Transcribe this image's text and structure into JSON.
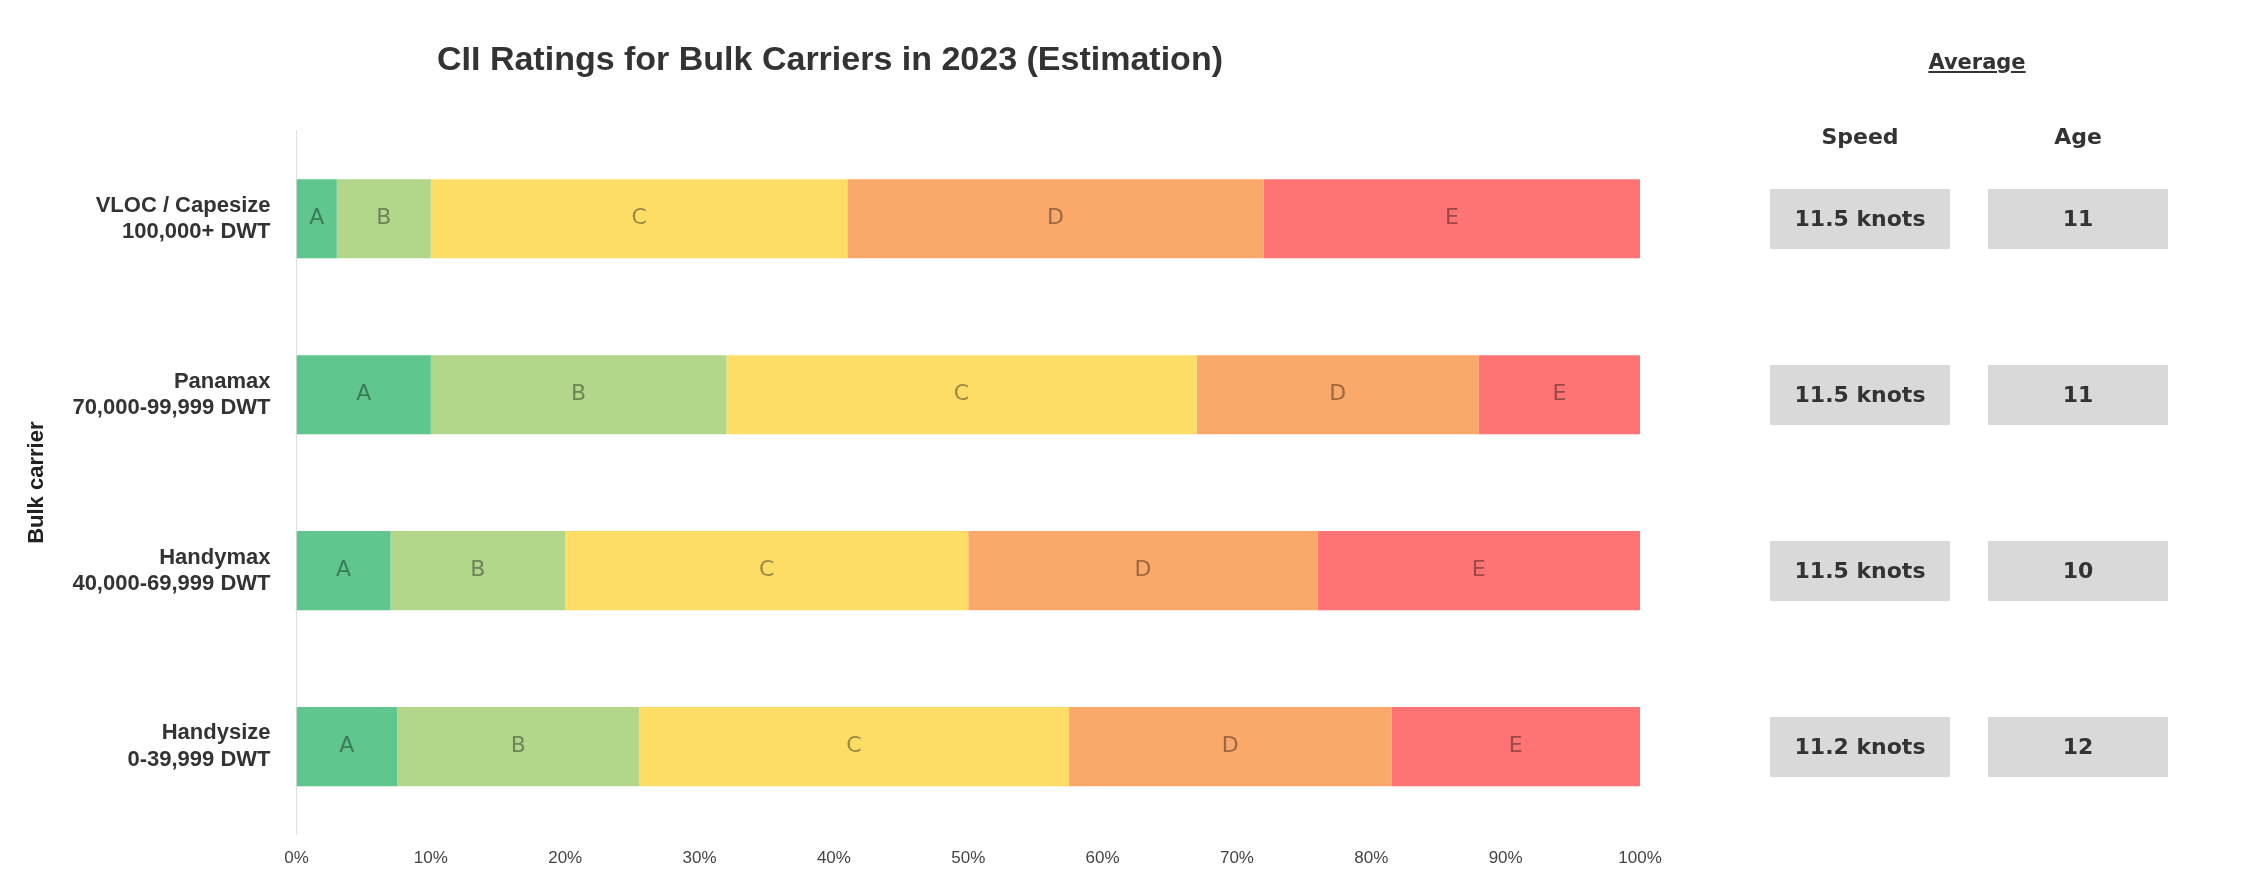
{
  "chart_data": [
    {
      "type": "bar",
      "orientation": "horizontal",
      "stacked": true,
      "title": "CII Ratings for Bulk Carriers in 2023 (Estimation)",
      "ylabel": "Bulk carrier",
      "categories": [
        "VLOC / Capesize\n100,000+ DWT",
        "Panamax\n70,000-99,999 DWT",
        "Handymax\n40,000-69,999 DWT",
        "Handysize\n0-39,999 DWT"
      ],
      "series": [
        {
          "name": "A",
          "color": "#5fc68e",
          "values": [
            3,
            10,
            7,
            7.5
          ]
        },
        {
          "name": "B",
          "color": "#b2d78b",
          "values": [
            7,
            22,
            13,
            18
          ]
        },
        {
          "name": "C",
          "color": "#fddd66",
          "values": [
            31,
            35,
            30,
            32
          ]
        },
        {
          "name": "D",
          "color": "#fba86b",
          "values": [
            31,
            21,
            26,
            24
          ]
        },
        {
          "name": "E",
          "color": "#fe7373",
          "values": [
            28,
            12,
            24,
            18.5
          ]
        }
      ],
      "xlim": [
        0,
        100
      ],
      "xticks": [
        {
          "value": 0,
          "label": "0%"
        },
        {
          "value": 10,
          "label": "10%"
        },
        {
          "value": 20,
          "label": "20%"
        },
        {
          "value": 30,
          "label": "30%"
        },
        {
          "value": 40,
          "label": "40%"
        },
        {
          "value": 50,
          "label": "50%"
        },
        {
          "value": 60,
          "label": "60%"
        },
        {
          "value": 70,
          "label": "70%"
        },
        {
          "value": 80,
          "label": "80%"
        },
        {
          "value": 90,
          "label": "90%"
        },
        {
          "value": 100,
          "label": "100%"
        }
      ],
      "grid": false,
      "legend": false
    },
    {
      "type": "other",
      "title": "Average",
      "categories": [
        "Speed",
        "Age"
      ],
      "cell_labels": [
        [
          "11.5 knots",
          "11"
        ],
        [
          "11.5 knots",
          "11"
        ],
        [
          "11.5 knots",
          "10"
        ],
        [
          "11.2 knots",
          "12"
        ]
      ]
    }
  ]
}
